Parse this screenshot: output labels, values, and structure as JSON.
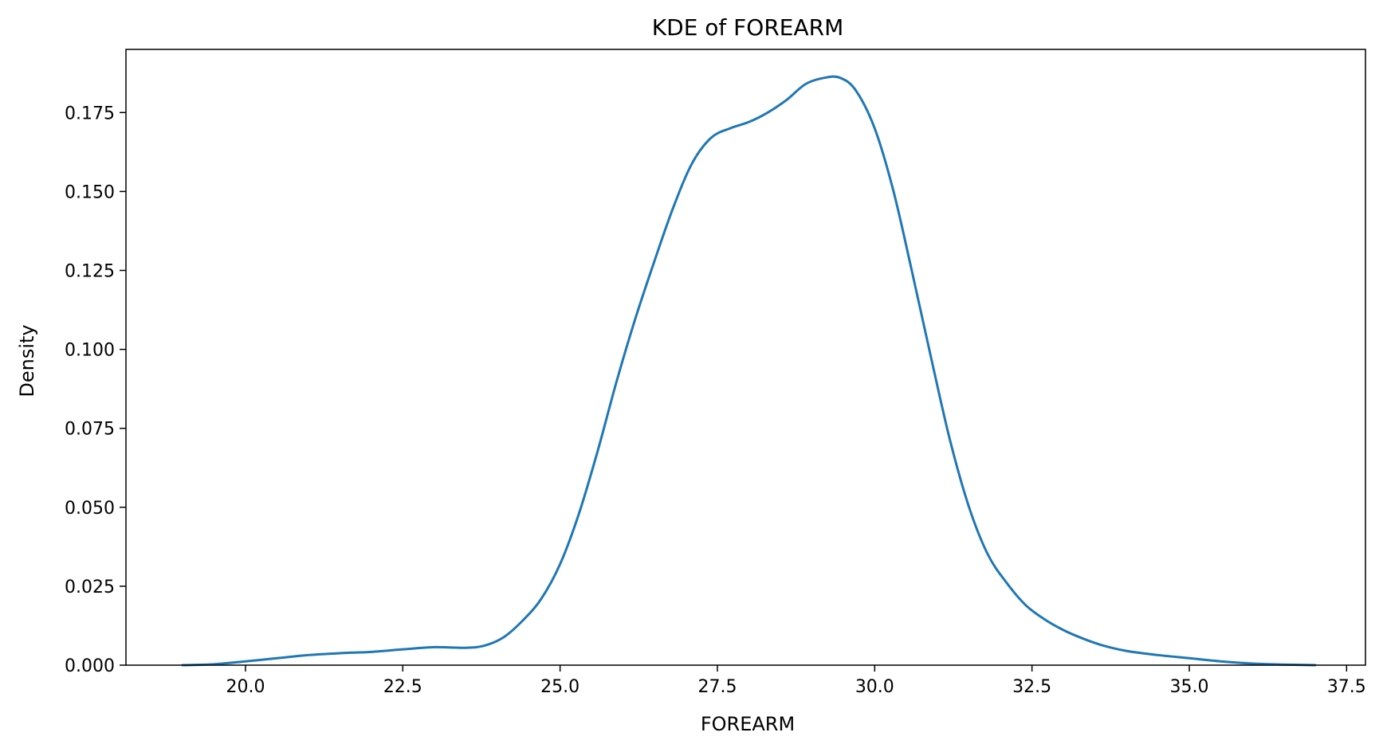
{
  "chart_data": {
    "type": "line",
    "title": "KDE of FOREARM",
    "xlabel": "FOREARM",
    "ylabel": "Density",
    "xlim": [
      18.1,
      37.8
    ],
    "ylim": [
      0.0,
      0.195
    ],
    "xticks": [
      20.0,
      22.5,
      25.0,
      27.5,
      30.0,
      32.5,
      35.0,
      37.5
    ],
    "xtick_labels": [
      "20.0",
      "22.5",
      "25.0",
      "27.5",
      "30.0",
      "32.5",
      "35.0",
      "37.5"
    ],
    "yticks": [
      0.0,
      0.025,
      0.05,
      0.075,
      0.1,
      0.125,
      0.15,
      0.175
    ],
    "ytick_labels": [
      "0.000",
      "0.025",
      "0.050",
      "0.075",
      "0.100",
      "0.125",
      "0.150",
      "0.175"
    ],
    "grid": false,
    "series": [
      {
        "color": "#1f77b4",
        "x": [
          19.0,
          19.5,
          20.0,
          20.5,
          21.0,
          21.5,
          22.0,
          22.5,
          23.0,
          23.5,
          23.8,
          24.1,
          24.4,
          24.7,
          25.0,
          25.3,
          25.6,
          25.9,
          26.2,
          26.5,
          26.8,
          27.1,
          27.4,
          27.7,
          28.0,
          28.3,
          28.6,
          28.9,
          29.2,
          29.45,
          29.7,
          30.0,
          30.3,
          30.6,
          30.9,
          31.2,
          31.5,
          31.8,
          32.1,
          32.4,
          32.7,
          33.0,
          33.3,
          33.6,
          34.0,
          34.5,
          35.0,
          35.5,
          36.0,
          36.5,
          37.0
        ],
        "y": [
          0.0,
          0.0003,
          0.0012,
          0.0022,
          0.0032,
          0.0038,
          0.0042,
          0.005,
          0.0057,
          0.0055,
          0.0062,
          0.0088,
          0.014,
          0.021,
          0.032,
          0.048,
          0.068,
          0.09,
          0.11,
          0.128,
          0.145,
          0.159,
          0.167,
          0.17,
          0.172,
          0.175,
          0.179,
          0.184,
          0.186,
          0.186,
          0.182,
          0.17,
          0.15,
          0.124,
          0.097,
          0.071,
          0.05,
          0.035,
          0.026,
          0.019,
          0.0145,
          0.0111,
          0.0085,
          0.0064,
          0.0045,
          0.0032,
          0.0022,
          0.0012,
          0.0005,
          0.0002,
          0.0
        ]
      }
    ]
  }
}
